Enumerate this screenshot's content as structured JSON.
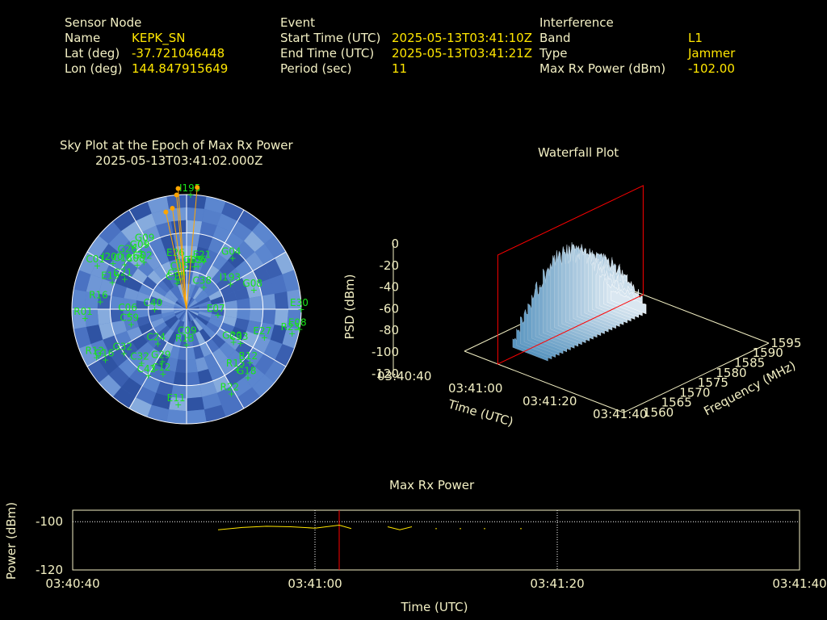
{
  "header": {
    "sensor": {
      "title": "Sensor Node",
      "name_label": "Name",
      "name": "KEPK_SN",
      "lat_label": "Lat (deg)",
      "lat": "-37.721046448",
      "lon_label": "Lon (deg)",
      "lon": "144.847915649"
    },
    "event": {
      "title": "Event",
      "start_label": "Start Time (UTC)",
      "start": "2025-05-13T03:41:10Z",
      "end_label": "End Time (UTC)",
      "end": "2025-05-13T03:41:21Z",
      "period_label": "Period (sec)",
      "period": "11"
    },
    "interference": {
      "title": "Interference",
      "band_label": "Band",
      "band": "L1",
      "type_label": "Type",
      "type": "Jammer",
      "maxrx_label": "Max Rx Power (dBm)",
      "maxrx": "-102.00"
    }
  },
  "colors": {
    "text": "#f3f0c4",
    "value": "#ffe600",
    "sat": "#19e619",
    "interf": "#ffa500",
    "marker": "#ff0000",
    "grid": "#ffffff",
    "waterfall": "#8fbfe0"
  },
  "sky_plot": {
    "title": "Sky Plot at the Epoch of Max Rx Power",
    "subtitle": "2025-05-13T03:41:02.000Z",
    "satellites": [
      {
        "id": "I195",
        "az": 2,
        "el": 0
      },
      {
        "id": "E26",
        "az": 350,
        "el": 50
      },
      {
        "id": "G06",
        "az": 15,
        "el": 55
      },
      {
        "id": "E21",
        "az": 20,
        "el": 50
      },
      {
        "id": "G05",
        "az": 10,
        "el": 56
      },
      {
        "id": "C34",
        "az": 345,
        "el": 66
      },
      {
        "id": "C10",
        "az": 340,
        "el": 68
      },
      {
        "id": "C05",
        "az": 352,
        "el": 61
      },
      {
        "id": "G04",
        "az": 42,
        "el": 36
      },
      {
        "id": "I193",
        "az": 60,
        "el": 50
      },
      {
        "id": "C38",
        "az": 38,
        "el": 68
      },
      {
        "id": "G08",
        "az": 74,
        "el": 35
      },
      {
        "id": "G09",
        "az": 322,
        "el": 32
      },
      {
        "id": "G02",
        "az": 318,
        "el": 40
      },
      {
        "id": "G09",
        "az": 328,
        "el": 30
      },
      {
        "id": "G26",
        "az": 313,
        "el": 28
      },
      {
        "id": "I200",
        "az": 302,
        "el": 22
      },
      {
        "id": "C13",
        "az": 306,
        "el": 30
      },
      {
        "id": "C08",
        "az": 312,
        "el": 38
      },
      {
        "id": "C01",
        "az": 296,
        "el": 12
      },
      {
        "id": "E19",
        "az": 290,
        "el": 28
      },
      {
        "id": "C21",
        "az": 296,
        "el": 36
      },
      {
        "id": "R16",
        "az": 275,
        "el": 22
      },
      {
        "id": "R01",
        "az": 265,
        "el": 10
      },
      {
        "id": "C06",
        "az": 265,
        "el": 45
      },
      {
        "id": "C59",
        "az": 255,
        "el": 45
      },
      {
        "id": "C40",
        "az": 270,
        "el": 65
      },
      {
        "id": "C24",
        "az": 220,
        "el": 55
      },
      {
        "id": "R13",
        "az": 180,
        "el": 62
      },
      {
        "id": "C09",
        "az": 175,
        "el": 68
      },
      {
        "id": "E07",
        "az": 100,
        "el": 65
      },
      {
        "id": "E30",
        "az": 90,
        "el": 0
      },
      {
        "id": "E08",
        "az": 100,
        "el": 0
      },
      {
        "id": "R23",
        "az": 103,
        "el": 5
      },
      {
        "id": "E27",
        "az": 110,
        "el": 25
      },
      {
        "id": "G20",
        "az": 125,
        "el": 45
      },
      {
        "id": "C33",
        "az": 122,
        "el": 40
      },
      {
        "id": "R12",
        "az": 130,
        "el": 25
      },
      {
        "id": "R15",
        "az": 140,
        "el": 28
      },
      {
        "id": "G18",
        "az": 138,
        "el": 18
      },
      {
        "id": "R22",
        "az": 152,
        "el": 15
      },
      {
        "id": "E11",
        "az": 185,
        "el": 15
      },
      {
        "id": "G32",
        "az": 235,
        "el": 30
      },
      {
        "id": "G16",
        "az": 238,
        "el": 15
      },
      {
        "id": "R12",
        "az": 242,
        "el": 10
      },
      {
        "id": "C32",
        "az": 220,
        "el": 35
      },
      {
        "id": "C42",
        "az": 210,
        "el": 30
      },
      {
        "id": "C12",
        "az": 200,
        "el": 36
      },
      {
        "id": "G29",
        "az": 205,
        "el": 45
      }
    ],
    "interference_sources": [
      {
        "az": 356,
        "el": -5
      },
      {
        "az": 355,
        "el": 0
      },
      {
        "az": 352,
        "el": 10
      },
      {
        "az": 348,
        "el": 12
      },
      {
        "az": 5,
        "el": -6
      }
    ]
  },
  "waterfall": {
    "title": "Waterfall Plot",
    "zlabel": "PSD (dBm)",
    "xlabel": "Time (UTC)",
    "ylabel": "Frequency (MHz)",
    "z_ticks": [
      "0",
      "-20",
      "-40",
      "-60",
      "-80",
      "-100",
      "-120"
    ],
    "x_ticks": [
      "03:40:40",
      "03:41:00",
      "03:41:20",
      "03:41:40"
    ],
    "y_ticks": [
      "1560",
      "1565",
      "1570",
      "1575",
      "1580",
      "1585",
      "1590",
      "1595"
    ]
  },
  "max_rx": {
    "title": "Max Rx Power",
    "ylabel": "Power (dBm)",
    "xlabel": "Time (UTC)",
    "y_ticks": [
      "-100",
      "-120"
    ],
    "x_ticks": [
      "03:40:40",
      "03:41:00",
      "03:41:20",
      "03:41:40"
    ]
  },
  "chart_data": [
    {
      "type": "scatter",
      "title": "Sky Plot at the Epoch of Max Rx Power",
      "subtitle": "2025-05-13T03:41:02.000Z",
      "polar": true
    },
    {
      "type": "area",
      "title": "Waterfall Plot",
      "xlabel": "Time (UTC)",
      "ylabel": "Frequency (MHz)",
      "zlabel": "PSD (dBm)",
      "xlim": [
        "03:40:40",
        "03:41:40"
      ],
      "ylim": [
        1560,
        1595
      ],
      "zlim": [
        -120,
        0
      ],
      "marker_time": "03:41:02"
    },
    {
      "type": "line",
      "title": "Max Rx Power",
      "xlabel": "Time (UTC)",
      "ylabel": "Power (dBm)",
      "xlim": [
        "03:40:40",
        "03:41:40"
      ],
      "ylim": [
        -121,
        -95
      ],
      "grid": true,
      "marker_time": "03:41:02",
      "series": [
        {
          "x": [
            "03:40:52",
            "03:40:54",
            "03:40:56",
            "03:40:58",
            "03:41:00"
          ],
          "y": [
            -103.5,
            -102.5,
            -102.0,
            -102.2,
            -102.8
          ]
        },
        {
          "x": [
            "03:41:00",
            "03:41:02",
            "03:41:03"
          ],
          "y": [
            -102.8,
            -101.5,
            -103.0
          ]
        },
        {
          "x": [
            "03:41:06",
            "03:41:07",
            "03:41:08"
          ],
          "y": [
            -102.2,
            -103.5,
            -102.2
          ]
        },
        {
          "x": [
            "03:41:10"
          ],
          "y": [
            -103.0
          ]
        },
        {
          "x": [
            "03:41:12"
          ],
          "y": [
            -103.0
          ]
        },
        {
          "x": [
            "03:41:14"
          ],
          "y": [
            -103.0
          ]
        },
        {
          "x": [
            "03:41:17"
          ],
          "y": [
            -103.0
          ]
        }
      ]
    }
  ]
}
